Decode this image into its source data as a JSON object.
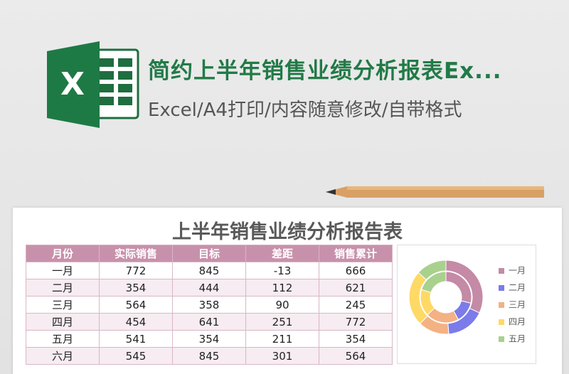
{
  "header": {
    "title": "简约上半年销售业绩分析报表Ex...",
    "subtitle": "Excel/A4打印/内容随意修改/自带格式"
  },
  "sheet": {
    "title": "上半年销售业绩分析报告表"
  },
  "table": {
    "columns": [
      "月份",
      "实际销售",
      "目标",
      "差距",
      "销售累计"
    ],
    "rows": [
      [
        "一月",
        772,
        845,
        -13,
        666
      ],
      [
        "二月",
        354,
        444,
        112,
        621
      ],
      [
        "三月",
        564,
        358,
        90,
        245
      ],
      [
        "四月",
        454,
        641,
        251,
        772
      ],
      [
        "五月",
        541,
        354,
        211,
        354
      ],
      [
        "六月",
        545,
        845,
        301,
        564
      ]
    ]
  },
  "chart": {
    "type": "donut",
    "categories": [
      "一月",
      "二月",
      "三月",
      "四月",
      "五月"
    ],
    "colors": [
      "#c48aa6",
      "#7b7bea",
      "#f4b183",
      "#ffd966",
      "#a9d18e"
    ],
    "rings": [
      {
        "values": [
          772,
          354,
          564,
          454,
          541
        ]
      },
      {
        "values": [
          845,
          444,
          358,
          641,
          354
        ]
      }
    ]
  }
}
